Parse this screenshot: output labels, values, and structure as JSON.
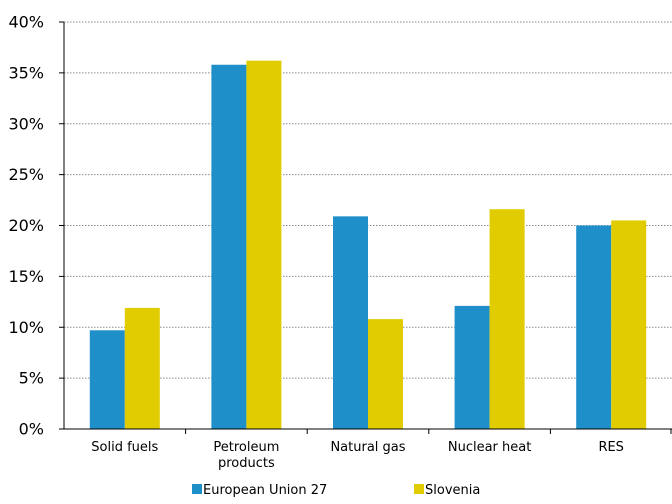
{
  "chart_data": {
    "type": "bar",
    "categories": [
      [
        "Solid fuels"
      ],
      [
        "Petroleum",
        "products"
      ],
      [
        "Natural gas"
      ],
      [
        "Nuclear heat"
      ],
      [
        "RES"
      ]
    ],
    "series": [
      {
        "name": "European Union 27",
        "color": "#1F8FC9",
        "values": [
          9.7,
          35.8,
          20.9,
          12.1,
          20.0
        ]
      },
      {
        "name": "Slovenia",
        "color": "#E0CC00",
        "values": [
          11.9,
          36.2,
          10.8,
          21.6,
          20.5
        ]
      }
    ],
    "yticks": [
      "0%",
      "5%",
      "10%",
      "15%",
      "20%",
      "25%",
      "30%",
      "35%",
      "40%"
    ],
    "ylim": [
      0,
      40
    ],
    "ystep": 5,
    "grid": true,
    "legend": "bottom",
    "title": "",
    "xlabel": "",
    "ylabel": ""
  }
}
